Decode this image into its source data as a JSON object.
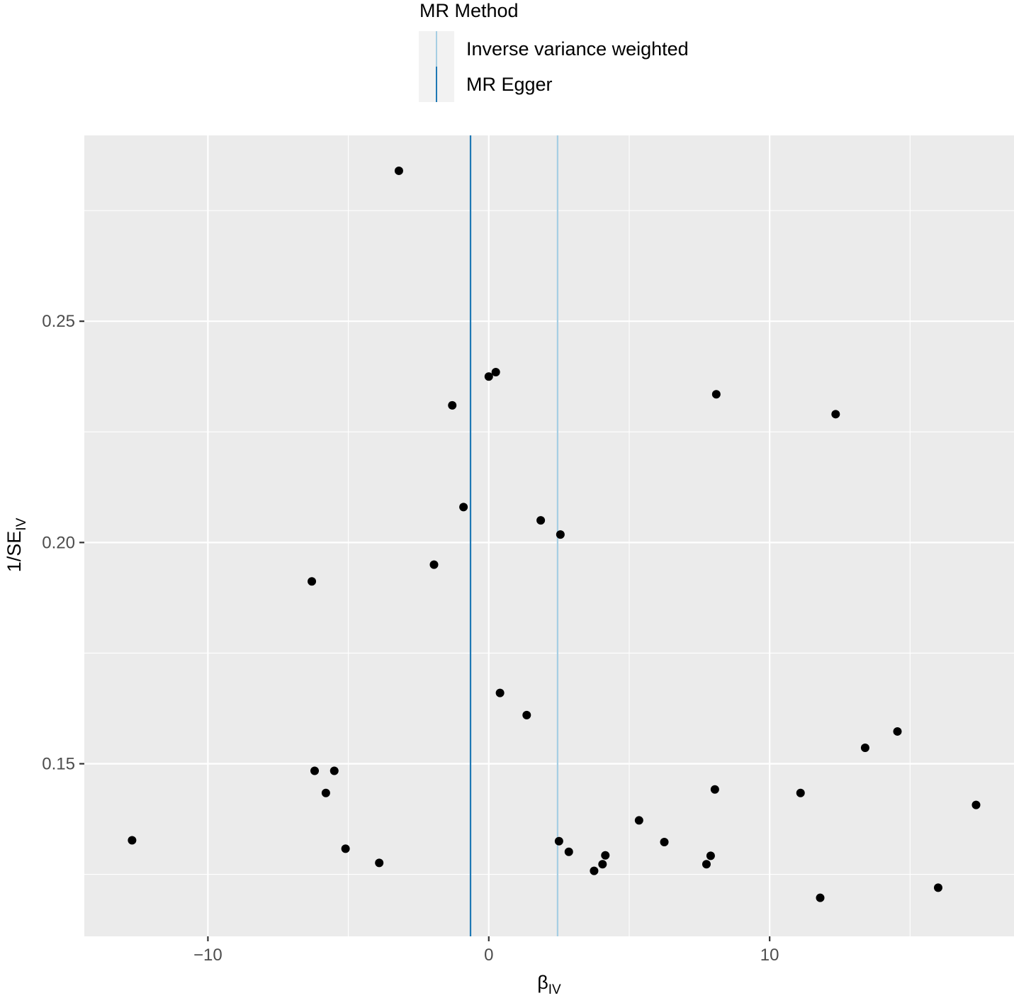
{
  "chart_data": {
    "type": "scatter",
    "title": "",
    "xlabel": {
      "main": "β",
      "sub": "IV"
    },
    "ylabel": {
      "main": "1/SE",
      "sub": "IV"
    },
    "xlim": [
      -14.4,
      18.7
    ],
    "ylim": [
      0.111,
      0.292
    ],
    "x_ticks": [
      -10,
      0,
      10
    ],
    "x_tick_labels": [
      "−10",
      "0",
      "10"
    ],
    "x_minor_ticks": [
      -15,
      -5,
      5,
      15
    ],
    "y_ticks": [
      0.15,
      0.2,
      0.25
    ],
    "y_tick_labels": [
      "0.15",
      "0.20",
      "0.25"
    ],
    "y_minor_ticks": [
      0.125,
      0.175,
      0.225,
      0.275
    ],
    "grid": true,
    "legend": {
      "title": "MR Method",
      "position": "top",
      "entries": [
        {
          "label": "Inverse variance weighted",
          "color": "#a6cee3"
        },
        {
          "label": "MR Egger",
          "color": "#1f78b4"
        }
      ]
    },
    "vlines": [
      {
        "name": "Inverse variance weighted",
        "x": 2.45,
        "color": "#a6cee3"
      },
      {
        "name": "MR Egger",
        "x": -0.65,
        "color": "#1f78b4"
      }
    ],
    "points": [
      {
        "x": -3.2,
        "y": 0.284
      },
      {
        "x": 0.25,
        "y": 0.2385
      },
      {
        "x": 0.0,
        "y": 0.2375
      },
      {
        "x": 8.1,
        "y": 0.2335
      },
      {
        "x": 12.35,
        "y": 0.229
      },
      {
        "x": -1.3,
        "y": 0.231
      },
      {
        "x": -0.9,
        "y": 0.208
      },
      {
        "x": 1.85,
        "y": 0.205
      },
      {
        "x": 2.55,
        "y": 0.2018
      },
      {
        "x": -1.95,
        "y": 0.195
      },
      {
        "x": -6.3,
        "y": 0.1912
      },
      {
        "x": 0.4,
        "y": 0.166
      },
      {
        "x": 1.35,
        "y": 0.161
      },
      {
        "x": 14.55,
        "y": 0.1573
      },
      {
        "x": 13.4,
        "y": 0.1536
      },
      {
        "x": -6.2,
        "y": 0.1484
      },
      {
        "x": -5.5,
        "y": 0.1484
      },
      {
        "x": -5.8,
        "y": 0.1434
      },
      {
        "x": 8.05,
        "y": 0.1442
      },
      {
        "x": 11.1,
        "y": 0.1434
      },
      {
        "x": 17.35,
        "y": 0.1407
      },
      {
        "x": -12.7,
        "y": 0.1327
      },
      {
        "x": -5.1,
        "y": 0.1308
      },
      {
        "x": -3.9,
        "y": 0.1276
      },
      {
        "x": 2.5,
        "y": 0.1325
      },
      {
        "x": 2.85,
        "y": 0.1301
      },
      {
        "x": 5.35,
        "y": 0.1372
      },
      {
        "x": 6.25,
        "y": 0.1323
      },
      {
        "x": 3.75,
        "y": 0.1258
      },
      {
        "x": 4.05,
        "y": 0.1273
      },
      {
        "x": 4.15,
        "y": 0.1293
      },
      {
        "x": 7.75,
        "y": 0.1273
      },
      {
        "x": 7.9,
        "y": 0.1292
      },
      {
        "x": 11.8,
        "y": 0.1197
      },
      {
        "x": 16.0,
        "y": 0.122
      }
    ]
  }
}
